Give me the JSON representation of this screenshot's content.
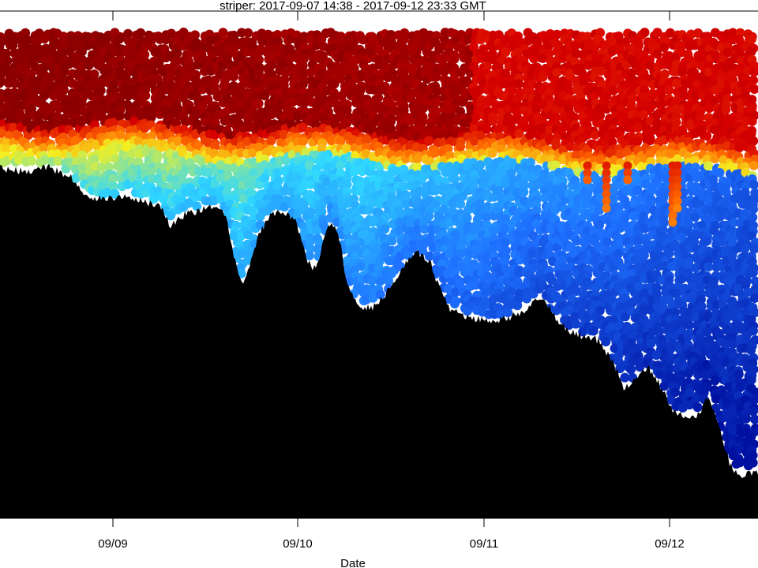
{
  "chart_data": {
    "type": "scatter",
    "title": "striper: 2017-09-07 14:38 - 2017-09-12 23:33 GMT",
    "xlabel": "Date",
    "ylabel": "",
    "x_ticks": [
      "09/09",
      "09/10",
      "09/11",
      "09/12"
    ],
    "y_scale": "depth (increasing downward)",
    "colormap": "jet (blue = low, red = high)",
    "colors": {
      "background": "#ffffff",
      "seafloor": "#000000",
      "low": "#0010a0",
      "mid_low": "#1e70ff",
      "mid": "#30d8ff",
      "mid_high": "#f4f020",
      "high_orange": "#ff6a00",
      "high_red": "#d60000",
      "very_high": "#8a0000"
    },
    "bottom_profile_description": "Seafloor profile descending from upper left to lower right",
    "grid": false,
    "legend": "none"
  }
}
